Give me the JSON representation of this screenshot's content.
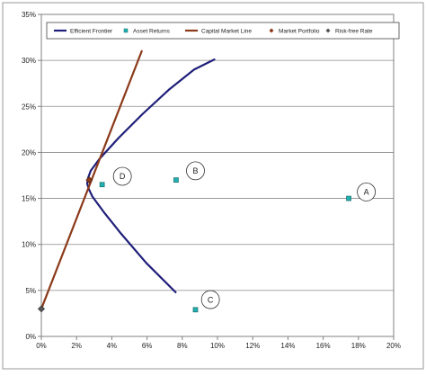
{
  "chart_data": {
    "type": "scatter",
    "title": "",
    "xlabel": "",
    "ylabel": "",
    "xlim": [
      0,
      0.2
    ],
    "ylim": [
      0,
      0.35
    ],
    "x_ticks": [
      0,
      0.02,
      0.04,
      0.06,
      0.08,
      0.1,
      0.12,
      0.14,
      0.16,
      0.18,
      0.2
    ],
    "x_tick_labels": [
      "0%",
      "2%",
      "4%",
      "6%",
      "8%",
      "10%",
      "12%",
      "14%",
      "16%",
      "18%",
      "20%"
    ],
    "y_ticks": [
      0,
      0.05,
      0.1,
      0.15,
      0.2,
      0.25,
      0.3,
      0.35
    ],
    "y_tick_labels": [
      "0%",
      "5%",
      "10%",
      "15%",
      "20%",
      "25%",
      "30%",
      "35%"
    ],
    "grid": "horizontal",
    "legend_position": "top",
    "legend": [
      "Efficient Frontier",
      "Asset Returns",
      "Capital Market Line",
      "Market Portfolio",
      "Risk-free Rate"
    ],
    "series": [
      {
        "name": "Efficient Frontier",
        "kind": "line",
        "color": "#1f1f7a",
        "points": [
          [
            0.0762,
            0.048
          ],
          [
            0.0595,
            0.08
          ],
          [
            0.0451,
            0.112
          ],
          [
            0.0355,
            0.135
          ],
          [
            0.029,
            0.152
          ],
          [
            0.027,
            0.16
          ],
          [
            0.026,
            0.166
          ],
          [
            0.0265,
            0.172
          ],
          [
            0.028,
            0.18
          ],
          [
            0.033,
            0.193
          ],
          [
            0.044,
            0.216
          ],
          [
            0.0576,
            0.242
          ],
          [
            0.0723,
            0.268
          ],
          [
            0.0867,
            0.29
          ],
          [
            0.0982,
            0.301
          ]
        ]
      },
      {
        "name": "Asset Returns",
        "kind": "scatter",
        "color": "#20b2b2",
        "points": [
          [
            0.0345,
            0.165
          ],
          [
            0.0765,
            0.17
          ],
          [
            0.1745,
            0.15
          ],
          [
            0.0875,
            0.029
          ]
        ]
      },
      {
        "name": "Capital Market Line",
        "kind": "line",
        "color": "#8b3a1a",
        "points": [
          [
            0.0,
            0.03
          ],
          [
            0.057,
            0.31
          ]
        ]
      },
      {
        "name": "Market Portfolio",
        "kind": "scatter",
        "color": "#8b3a1a",
        "points": [
          [
            0.0272,
            0.17
          ]
        ]
      },
      {
        "name": "Risk-free Rate",
        "kind": "scatter",
        "color": "#555555",
        "points": [
          [
            0.0,
            0.03
          ]
        ]
      }
    ],
    "annotations": [
      {
        "label": "A",
        "x": 0.1845,
        "y": 0.157
      },
      {
        "label": "B",
        "x": 0.0875,
        "y": 0.18
      },
      {
        "label": "C",
        "x": 0.096,
        "y": 0.04
      },
      {
        "label": "D",
        "x": 0.046,
        "y": 0.174
      }
    ]
  }
}
